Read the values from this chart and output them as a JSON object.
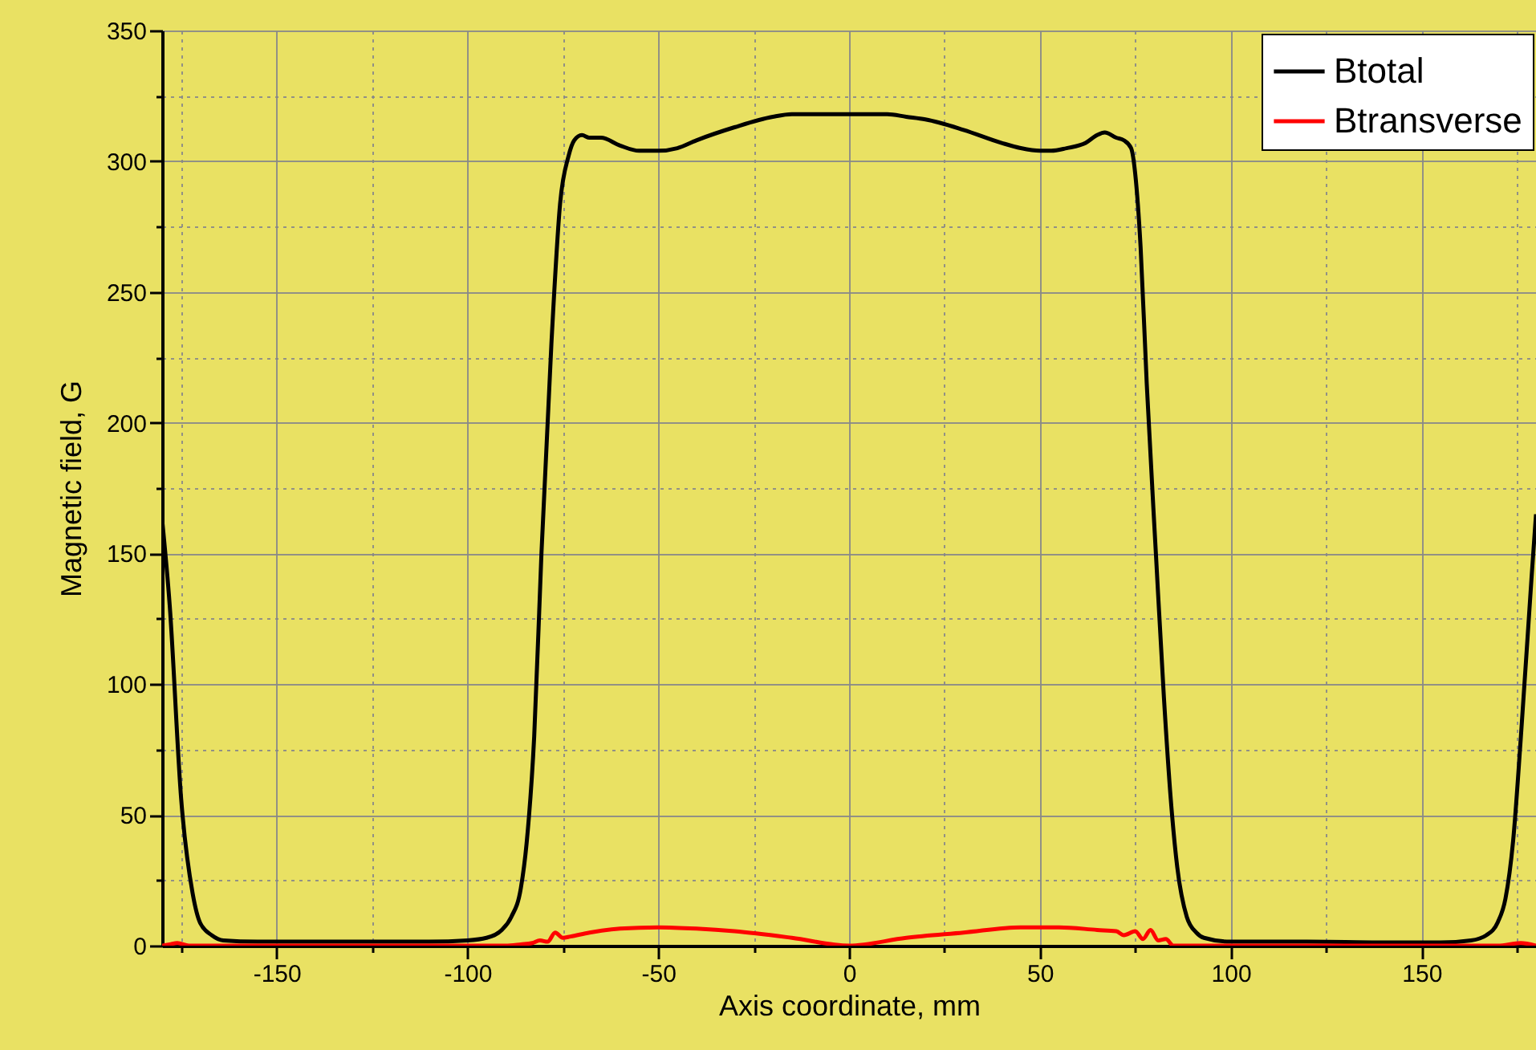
{
  "chart_data": {
    "type": "line",
    "xlabel": "Axis coordinate, mm",
    "ylabel": "Magnetic field, G",
    "xlim": [
      -180,
      180
    ],
    "ylim": [
      0,
      350
    ],
    "xticks": [
      {
        "value": -175,
        "label": null
      },
      -150,
      {
        "value": -125,
        "label": null
      },
      -100,
      {
        "value": -75,
        "label": null
      },
      -50,
      {
        "value": -25,
        "label": null
      },
      0,
      {
        "value": 25,
        "label": null
      },
      50,
      {
        "value": 75,
        "label": null
      },
      100,
      {
        "value": 125,
        "label": null
      },
      150,
      {
        "value": 175,
        "label": null
      }
    ],
    "yticks": [
      0,
      {
        "value": 25,
        "label": null
      },
      50,
      {
        "value": 75,
        "label": null
      },
      100,
      {
        "value": 125,
        "label": null
      },
      150,
      {
        "value": 175,
        "label": null
      },
      200,
      {
        "value": 225,
        "label": null
      },
      250,
      {
        "value": 275,
        "label": null
      },
      300,
      {
        "value": 325,
        "label": null
      },
      350
    ],
    "grid": true,
    "legend": "top right",
    "line_style": "solid",
    "marker": "none",
    "series": [
      {
        "name": "Btotal",
        "color": "#000000",
        "x": [
          -180,
          -178,
          -175,
          -172,
          -170,
          -167,
          -164,
          -155,
          -130,
          -110,
          -100,
          -95,
          -91,
          -88.5,
          -86,
          -84.5,
          -82.5,
          -80.6,
          -78,
          -75.7,
          -73.5,
          -72,
          -70,
          -68,
          -65,
          -60,
          -55,
          -50,
          -45,
          -40,
          -30,
          -20,
          -15,
          -10,
          0,
          10,
          15,
          20,
          30,
          40,
          45,
          50,
          53,
          57,
          62,
          65,
          67,
          70,
          72,
          73.9,
          75,
          76.4,
          78,
          80.4,
          82.5,
          84.3,
          86,
          88.5,
          91,
          93,
          100,
          120,
          140,
          155,
          163,
          167,
          170,
          172,
          174,
          176,
          178.8,
          180
        ],
        "values": [
          163,
          130,
          56,
          20,
          8.6,
          4,
          2,
          1.5,
          1.5,
          1.5,
          2,
          3,
          6,
          11,
          22,
          39,
          80,
          150,
          230,
          284,
          302,
          308,
          310,
          309,
          309,
          306,
          304,
          304,
          305,
          308,
          313,
          317,
          318,
          318,
          318,
          318,
          317,
          316,
          312,
          307,
          305,
          304,
          304,
          305,
          307,
          310,
          311,
          309,
          308,
          305,
          295,
          267,
          215,
          150,
          95,
          56,
          30,
          11,
          5,
          3,
          1.5,
          1.5,
          1.2,
          1.2,
          2,
          4,
          9,
          18,
          40,
          79,
          140,
          165
        ]
      },
      {
        "name": "Btransverse",
        "color": "#ff0000",
        "x": [
          -180,
          -178,
          -176,
          -173,
          -170,
          -150,
          -100,
          -90,
          -86,
          -83,
          -81,
          -79,
          -77,
          -75,
          -73,
          -68,
          -60,
          -50,
          -40,
          -30,
          -15,
          0,
          15,
          30,
          45,
          50,
          55,
          65,
          70,
          72,
          75,
          77,
          79,
          81,
          83,
          85,
          90,
          120,
          150,
          170,
          176,
          180
        ],
        "values": [
          0,
          0.5,
          1,
          0,
          0,
          0,
          0,
          0,
          0.5,
          1,
          2,
          1.5,
          5,
          3,
          3.5,
          5,
          6.5,
          7,
          6.5,
          5.5,
          3,
          0,
          3,
          5,
          7,
          7,
          7,
          6,
          5.5,
          4,
          5.5,
          2.5,
          6,
          2,
          2.5,
          0,
          0,
          0,
          0,
          0,
          1,
          0
        ]
      }
    ]
  }
}
